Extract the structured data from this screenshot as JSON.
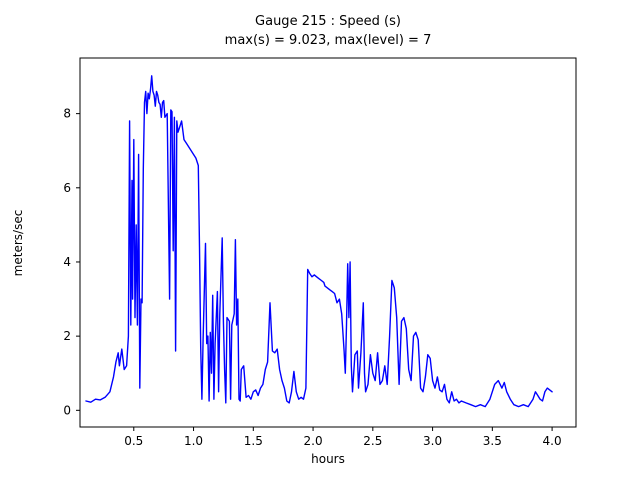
{
  "chart_data": {
    "type": "line",
    "title": "Gauge 215 : Speed (s)",
    "subtitle": "max(s) =   9.023,    max(level) = 7",
    "xlabel": "hours",
    "ylabel": "meters/sec",
    "xlim": [
      0.05,
      4.2
    ],
    "ylim": [
      -0.45,
      9.5
    ],
    "xticks": [
      0.5,
      1.0,
      1.5,
      2.0,
      2.5,
      3.0,
      3.5,
      4.0
    ],
    "yticks": [
      0,
      2,
      4,
      6,
      8
    ],
    "grid": false,
    "legend": "none",
    "line_color": "#0000ff",
    "max_s": 9.023,
    "max_level": 7,
    "series": [
      {
        "name": "speed",
        "points": [
          [
            0.1,
            0.25
          ],
          [
            0.14,
            0.22
          ],
          [
            0.18,
            0.3
          ],
          [
            0.22,
            0.28
          ],
          [
            0.26,
            0.35
          ],
          [
            0.3,
            0.5
          ],
          [
            0.33,
            0.9
          ],
          [
            0.35,
            1.3
          ],
          [
            0.37,
            1.55
          ],
          [
            0.38,
            1.2
          ],
          [
            0.4,
            1.65
          ],
          [
            0.42,
            1.1
          ],
          [
            0.44,
            1.2
          ],
          [
            0.455,
            2.0
          ],
          [
            0.465,
            7.8
          ],
          [
            0.475,
            2.3
          ],
          [
            0.485,
            6.2
          ],
          [
            0.49,
            3.0
          ],
          [
            0.5,
            7.3
          ],
          [
            0.51,
            2.5
          ],
          [
            0.52,
            5.0
          ],
          [
            0.53,
            2.3
          ],
          [
            0.54,
            6.9
          ],
          [
            0.55,
            0.6
          ],
          [
            0.56,
            3.0
          ],
          [
            0.57,
            2.9
          ],
          [
            0.58,
            6.5
          ],
          [
            0.59,
            8.3
          ],
          [
            0.6,
            8.6
          ],
          [
            0.61,
            8.0
          ],
          [
            0.62,
            8.55
          ],
          [
            0.63,
            8.4
          ],
          [
            0.64,
            8.65
          ],
          [
            0.65,
            9.02
          ],
          [
            0.66,
            8.6
          ],
          [
            0.67,
            8.5
          ],
          [
            0.68,
            8.2
          ],
          [
            0.69,
            8.6
          ],
          [
            0.7,
            8.5
          ],
          [
            0.71,
            8.3
          ],
          [
            0.72,
            8.25
          ],
          [
            0.73,
            7.9
          ],
          [
            0.74,
            8.3
          ],
          [
            0.75,
            8.35
          ],
          [
            0.76,
            7.9
          ],
          [
            0.78,
            8.0
          ],
          [
            0.8,
            3.0
          ],
          [
            0.81,
            8.1
          ],
          [
            0.82,
            8.05
          ],
          [
            0.83,
            4.3
          ],
          [
            0.84,
            7.9
          ],
          [
            0.85,
            1.6
          ],
          [
            0.86,
            7.8
          ],
          [
            0.87,
            7.5
          ],
          [
            0.88,
            7.6
          ],
          [
            0.9,
            7.8
          ],
          [
            0.92,
            7.3
          ],
          [
            0.94,
            7.2
          ],
          [
            0.96,
            7.1
          ],
          [
            0.98,
            7.0
          ],
          [
            1.0,
            6.9
          ],
          [
            1.02,
            6.8
          ],
          [
            1.04,
            6.6
          ],
          [
            1.05,
            4.4
          ],
          [
            1.06,
            1.7
          ],
          [
            1.07,
            0.3
          ],
          [
            1.08,
            1.9
          ],
          [
            1.1,
            4.5
          ],
          [
            1.11,
            1.8
          ],
          [
            1.12,
            2.0
          ],
          [
            1.13,
            0.25
          ],
          [
            1.14,
            2.1
          ],
          [
            1.15,
            1.0
          ],
          [
            1.16,
            3.1
          ],
          [
            1.17,
            0.3
          ],
          [
            1.18,
            1.8
          ],
          [
            1.2,
            3.2
          ],
          [
            1.21,
            0.5
          ],
          [
            1.22,
            2.6
          ],
          [
            1.24,
            4.65
          ],
          [
            1.25,
            2.4
          ],
          [
            1.26,
            1.1
          ],
          [
            1.27,
            0.2
          ],
          [
            1.28,
            2.5
          ],
          [
            1.3,
            2.4
          ],
          [
            1.31,
            0.3
          ],
          [
            1.32,
            2.3
          ],
          [
            1.34,
            2.6
          ],
          [
            1.35,
            4.6
          ],
          [
            1.36,
            2.3
          ],
          [
            1.37,
            3.0
          ],
          [
            1.38,
            0.3
          ],
          [
            1.39,
            0.25
          ],
          [
            1.4,
            1.1
          ],
          [
            1.42,
            1.2
          ],
          [
            1.44,
            0.35
          ],
          [
            1.46,
            0.4
          ],
          [
            1.48,
            0.3
          ],
          [
            1.5,
            0.5
          ],
          [
            1.52,
            0.55
          ],
          [
            1.54,
            0.4
          ],
          [
            1.56,
            0.6
          ],
          [
            1.58,
            0.7
          ],
          [
            1.6,
            1.1
          ],
          [
            1.62,
            1.3
          ],
          [
            1.64,
            2.9
          ],
          [
            1.66,
            1.6
          ],
          [
            1.68,
            1.55
          ],
          [
            1.7,
            1.65
          ],
          [
            1.72,
            1.1
          ],
          [
            1.74,
            0.8
          ],
          [
            1.76,
            0.6
          ],
          [
            1.78,
            0.25
          ],
          [
            1.8,
            0.2
          ],
          [
            1.82,
            0.5
          ],
          [
            1.84,
            1.05
          ],
          [
            1.86,
            0.5
          ],
          [
            1.88,
            0.3
          ],
          [
            1.9,
            0.35
          ],
          [
            1.92,
            0.3
          ],
          [
            1.94,
            0.6
          ],
          [
            1.955,
            3.8
          ],
          [
            1.97,
            3.7
          ],
          [
            1.99,
            3.6
          ],
          [
            2.01,
            3.65
          ],
          [
            2.03,
            3.6
          ],
          [
            2.05,
            3.55
          ],
          [
            2.07,
            3.5
          ],
          [
            2.09,
            3.45
          ],
          [
            2.1,
            3.35
          ],
          [
            2.12,
            3.3
          ],
          [
            2.14,
            3.25
          ],
          [
            2.16,
            3.2
          ],
          [
            2.18,
            3.15
          ],
          [
            2.2,
            2.9
          ],
          [
            2.22,
            3.0
          ],
          [
            2.24,
            2.6
          ],
          [
            2.26,
            1.6
          ],
          [
            2.27,
            1.0
          ],
          [
            2.28,
            2.3
          ],
          [
            2.29,
            3.95
          ],
          [
            2.3,
            2.5
          ],
          [
            2.31,
            4.0
          ],
          [
            2.32,
            1.2
          ],
          [
            2.33,
            0.5
          ],
          [
            2.35,
            1.5
          ],
          [
            2.37,
            1.6
          ],
          [
            2.38,
            0.6
          ],
          [
            2.4,
            1.55
          ],
          [
            2.42,
            2.9
          ],
          [
            2.43,
            1.0
          ],
          [
            2.44,
            0.5
          ],
          [
            2.46,
            0.7
          ],
          [
            2.48,
            1.5
          ],
          [
            2.5,
            1.0
          ],
          [
            2.52,
            0.8
          ],
          [
            2.54,
            1.55
          ],
          [
            2.56,
            0.7
          ],
          [
            2.58,
            0.8
          ],
          [
            2.6,
            1.2
          ],
          [
            2.62,
            0.7
          ],
          [
            2.64,
            2.0
          ],
          [
            2.66,
            3.5
          ],
          [
            2.68,
            3.3
          ],
          [
            2.7,
            2.5
          ],
          [
            2.72,
            0.7
          ],
          [
            2.74,
            2.4
          ],
          [
            2.76,
            2.5
          ],
          [
            2.78,
            2.2
          ],
          [
            2.8,
            1.1
          ],
          [
            2.82,
            0.8
          ],
          [
            2.84,
            2.0
          ],
          [
            2.86,
            2.1
          ],
          [
            2.88,
            1.9
          ],
          [
            2.9,
            0.6
          ],
          [
            2.92,
            0.5
          ],
          [
            2.94,
            0.9
          ],
          [
            2.96,
            1.5
          ],
          [
            2.98,
            1.4
          ],
          [
            3.0,
            0.8
          ],
          [
            3.02,
            0.6
          ],
          [
            3.04,
            0.9
          ],
          [
            3.06,
            0.55
          ],
          [
            3.08,
            0.5
          ],
          [
            3.1,
            0.7
          ],
          [
            3.12,
            0.3
          ],
          [
            3.14,
            0.2
          ],
          [
            3.16,
            0.5
          ],
          [
            3.18,
            0.25
          ],
          [
            3.2,
            0.3
          ],
          [
            3.22,
            0.2
          ],
          [
            3.24,
            0.25
          ],
          [
            3.28,
            0.2
          ],
          [
            3.32,
            0.15
          ],
          [
            3.36,
            0.1
          ],
          [
            3.4,
            0.15
          ],
          [
            3.44,
            0.1
          ],
          [
            3.48,
            0.3
          ],
          [
            3.52,
            0.7
          ],
          [
            3.55,
            0.8
          ],
          [
            3.58,
            0.6
          ],
          [
            3.6,
            0.75
          ],
          [
            3.62,
            0.5
          ],
          [
            3.65,
            0.3
          ],
          [
            3.68,
            0.15
          ],
          [
            3.72,
            0.1
          ],
          [
            3.76,
            0.15
          ],
          [
            3.8,
            0.1
          ],
          [
            3.84,
            0.3
          ],
          [
            3.86,
            0.5
          ],
          [
            3.88,
            0.4
          ],
          [
            3.9,
            0.3
          ],
          [
            3.92,
            0.25
          ],
          [
            3.94,
            0.5
          ],
          [
            3.96,
            0.6
          ],
          [
            3.98,
            0.55
          ],
          [
            4.0,
            0.5
          ]
        ]
      }
    ]
  }
}
